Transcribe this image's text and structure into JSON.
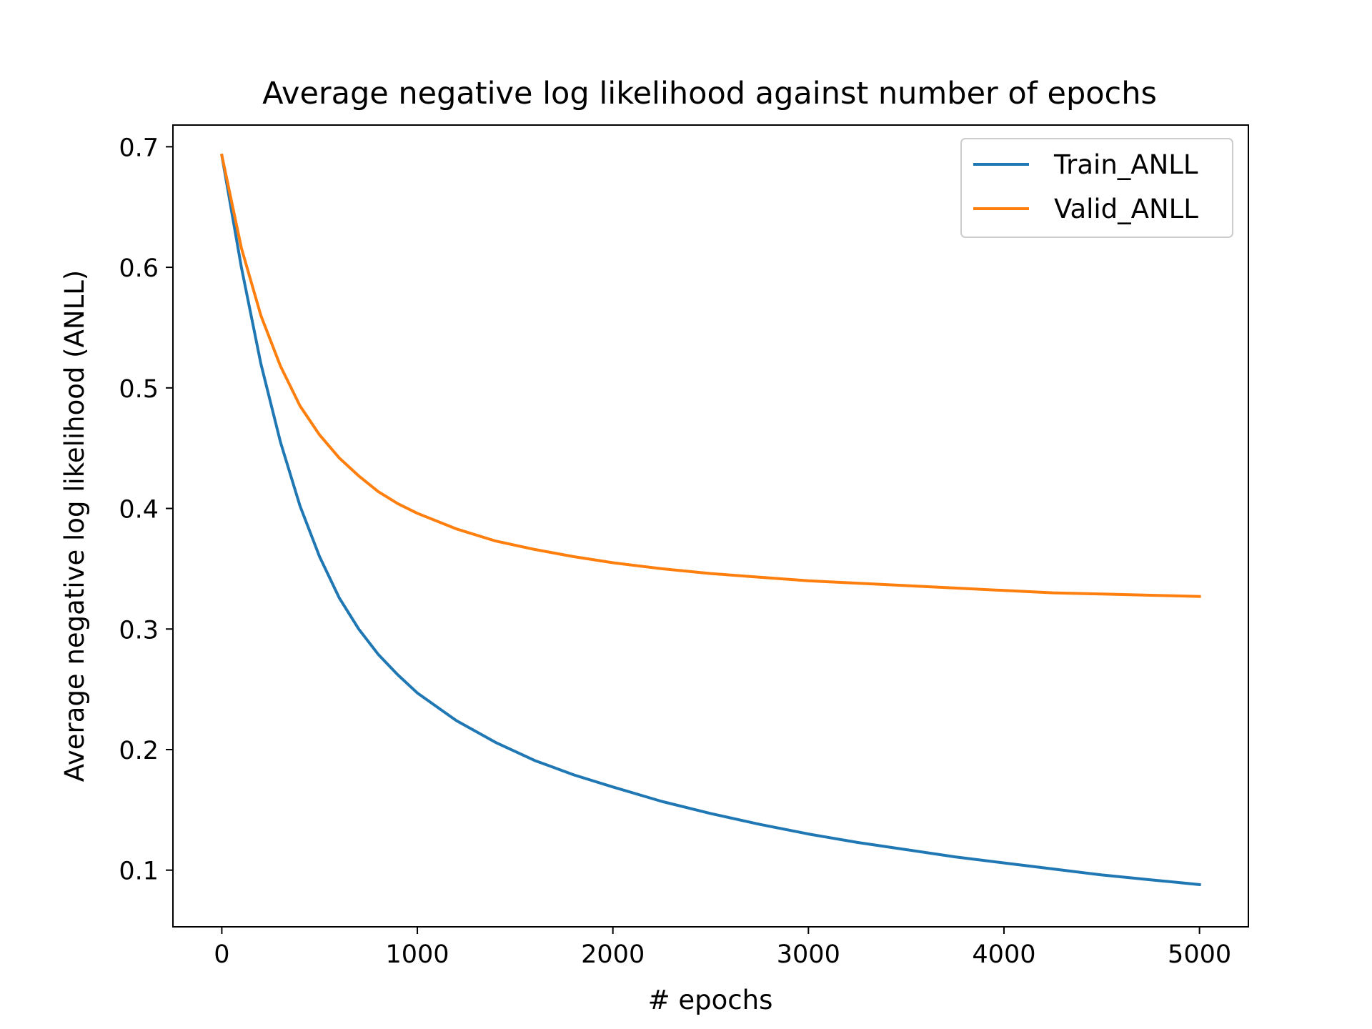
{
  "chart_data": {
    "type": "line",
    "title": "Average negative log likelihood against number of epochs",
    "xlabel": "# epochs",
    "ylabel": "Average negative log likelihood (ANLL)",
    "xlim": [
      -250,
      5250
    ],
    "ylim": [
      0.053,
      0.718
    ],
    "xticks": [
      0,
      1000,
      2000,
      3000,
      4000,
      5000
    ],
    "xtick_labels": [
      "0",
      "1000",
      "2000",
      "3000",
      "4000",
      "5000"
    ],
    "yticks": [
      0.1,
      0.2,
      0.3,
      0.4,
      0.5,
      0.6,
      0.7
    ],
    "ytick_labels": [
      "0.1",
      "0.2",
      "0.3",
      "0.4",
      "0.5",
      "0.6",
      "0.7"
    ],
    "grid": false,
    "legend_position": "top-right",
    "x": [
      0,
      100,
      200,
      300,
      400,
      500,
      600,
      700,
      800,
      900,
      1000,
      1200,
      1400,
      1600,
      1800,
      2000,
      2250,
      2500,
      2750,
      3000,
      3250,
      3500,
      3750,
      4000,
      4250,
      4500,
      4750,
      5000
    ],
    "series": [
      {
        "name": "Train_ANLL",
        "color": "#1f77b4",
        "values": [
          0.693,
          0.6,
          0.52,
          0.455,
          0.402,
          0.36,
          0.326,
          0.3,
          0.279,
          0.262,
          0.247,
          0.224,
          0.206,
          0.191,
          0.179,
          0.169,
          0.157,
          0.147,
          0.138,
          0.13,
          0.123,
          0.117,
          0.111,
          0.106,
          0.101,
          0.096,
          0.092,
          0.088
        ]
      },
      {
        "name": "Valid_ANLL",
        "color": "#ff7f0e",
        "values": [
          0.693,
          0.616,
          0.56,
          0.518,
          0.485,
          0.461,
          0.442,
          0.427,
          0.414,
          0.404,
          0.396,
          0.383,
          0.373,
          0.366,
          0.36,
          0.355,
          0.35,
          0.346,
          0.343,
          0.34,
          0.338,
          0.336,
          0.334,
          0.332,
          0.33,
          0.329,
          0.328,
          0.327
        ]
      }
    ]
  }
}
